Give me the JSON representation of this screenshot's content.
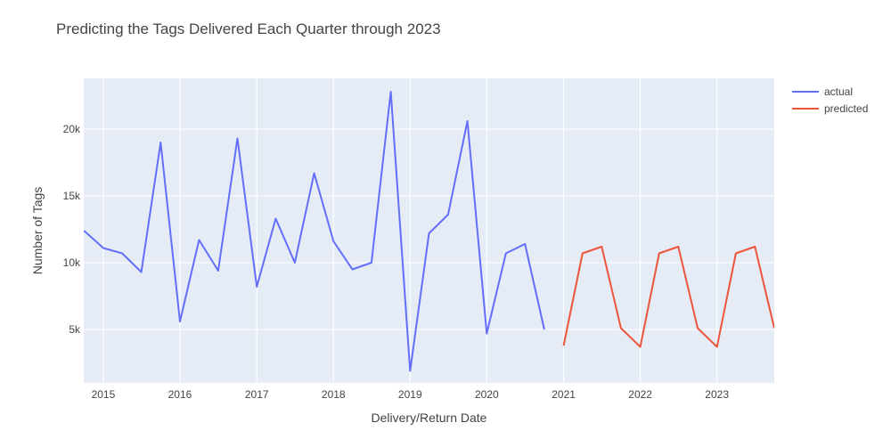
{
  "chart_data": {
    "type": "line",
    "title": "Predicting the Tags Delivered Each Quarter through 2023",
    "xlabel": "Delivery/Return Date",
    "ylabel": "Number of Tags",
    "xlim": [
      "2014-09-30",
      "2023-10-01"
    ],
    "ylim": [
      1000,
      23800
    ],
    "x_ticks": [
      "2015",
      "2016",
      "2017",
      "2018",
      "2019",
      "2020",
      "2021",
      "2022",
      "2023"
    ],
    "y_ticks": [
      "5k",
      "10k",
      "15k",
      "20k"
    ],
    "y_tick_values": [
      5000,
      10000,
      15000,
      20000
    ],
    "legend_position": "top-right",
    "grid": true,
    "series": [
      {
        "name": "actual",
        "color": "#636efa",
        "x": [
          "2014-10-01",
          "2015-01-01",
          "2015-04-01",
          "2015-07-01",
          "2015-10-01",
          "2016-01-01",
          "2016-04-01",
          "2016-07-01",
          "2016-10-01",
          "2017-01-01",
          "2017-04-01",
          "2017-07-01",
          "2017-10-01",
          "2018-01-01",
          "2018-04-01",
          "2018-07-01",
          "2018-10-01",
          "2019-01-01",
          "2019-04-01",
          "2019-07-01",
          "2019-10-01",
          "2020-01-01",
          "2020-04-01",
          "2020-07-01",
          "2020-10-01"
        ],
        "values": [
          12400,
          11100,
          10700,
          9300,
          19000,
          5600,
          11700,
          9400,
          19300,
          8200,
          13300,
          10000,
          16700,
          11600,
          9500,
          10000,
          22800,
          1900,
          12200,
          13600,
          20600,
          4700,
          10700,
          11400,
          5000
        ]
      },
      {
        "name": "predicted",
        "color": "#ef553b",
        "x": [
          "2021-01-01",
          "2021-04-01",
          "2021-07-01",
          "2021-10-01",
          "2022-01-01",
          "2022-04-01",
          "2022-07-01",
          "2022-10-01",
          "2023-01-01",
          "2023-04-01",
          "2023-07-01",
          "2023-10-01"
        ],
        "values": [
          3800,
          10700,
          11200,
          5100,
          3700,
          10700,
          11200,
          5100,
          3700,
          10700,
          11200,
          5100
        ]
      }
    ]
  }
}
